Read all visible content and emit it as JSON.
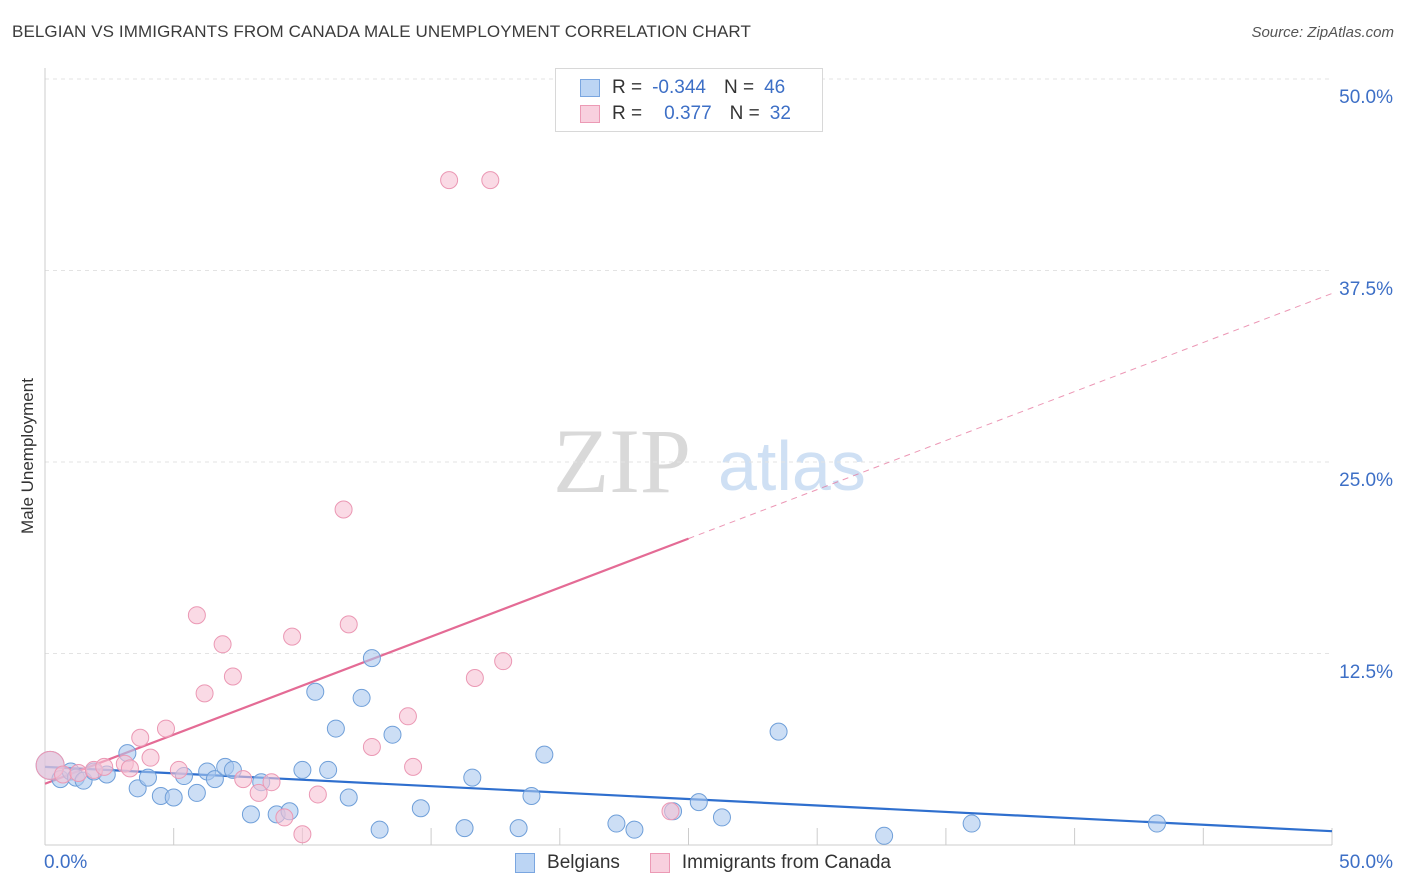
{
  "header": {
    "title": "BELGIAN VS IMMIGRANTS FROM CANADA MALE UNEMPLOYMENT CORRELATION CHART",
    "source": "Source: ZipAtlas.com"
  },
  "watermark": {
    "zip": "ZIP",
    "atlas": "atlas"
  },
  "legend_top": {
    "rows": [
      {
        "r_label": "R =",
        "r_value": "-0.344",
        "n_label": "N =",
        "n_value": "46",
        "color": "#a9c8f0",
        "border": "#7aa6e0"
      },
      {
        "r_label": "R =",
        "r_value": "0.377",
        "n_label": "N =",
        "n_value": "32",
        "color": "#f6c3d4",
        "border": "#ec9ab5"
      }
    ]
  },
  "colors": {
    "belgians_fill": "#aac8ee",
    "belgians_stroke": "#6f9fd9",
    "belgians_line": "#2f6fce",
    "canada_fill": "#f7c2d3",
    "canada_stroke": "#eb98b4",
    "canada_line": "#e46b95",
    "grid": "#e3e3e3",
    "axis_text": "#3d6fc6"
  },
  "chart_data": {
    "type": "scatter",
    "title": "BELGIAN VS IMMIGRANTS FROM CANADA MALE UNEMPLOYMENT CORRELATION CHART",
    "xlabel": "",
    "ylabel": "Male Unemployment",
    "xlim": [
      0,
      50
    ],
    "ylim": [
      0,
      50
    ],
    "x_tick_labels": [
      "0.0%",
      "50.0%"
    ],
    "y_tick_labels": [
      "12.5%",
      "25.0%",
      "37.5%",
      "50.0%"
    ],
    "y_ticks": [
      12.5,
      25.0,
      37.5,
      50.0
    ],
    "grid": true,
    "legend_position": "bottom-center",
    "series": [
      {
        "name": "Belgians",
        "points": [
          [
            0.2,
            5.2
          ],
          [
            0.6,
            4.3
          ],
          [
            1.0,
            4.8
          ],
          [
            1.2,
            4.4
          ],
          [
            1.5,
            4.2
          ],
          [
            1.9,
            4.8
          ],
          [
            2.4,
            4.6
          ],
          [
            3.2,
            6.0
          ],
          [
            3.6,
            3.7
          ],
          [
            4.0,
            4.4
          ],
          [
            4.5,
            3.2
          ],
          [
            5.0,
            3.1
          ],
          [
            5.4,
            4.5
          ],
          [
            5.9,
            3.4
          ],
          [
            6.3,
            4.8
          ],
          [
            6.6,
            4.3
          ],
          [
            7.0,
            5.1
          ],
          [
            7.3,
            4.9
          ],
          [
            8.0,
            2.0
          ],
          [
            8.4,
            4.1
          ],
          [
            9.0,
            2.0
          ],
          [
            9.5,
            2.2
          ],
          [
            10.0,
            4.9
          ],
          [
            10.5,
            10.0
          ],
          [
            11.0,
            4.9
          ],
          [
            11.3,
            7.6
          ],
          [
            11.8,
            3.1
          ],
          [
            12.3,
            9.6
          ],
          [
            12.7,
            12.2
          ],
          [
            13.0,
            1.0
          ],
          [
            13.5,
            7.2
          ],
          [
            14.6,
            2.4
          ],
          [
            16.3,
            1.1
          ],
          [
            16.6,
            4.4
          ],
          [
            18.4,
            1.1
          ],
          [
            18.9,
            3.2
          ],
          [
            19.4,
            5.9
          ],
          [
            22.2,
            1.4
          ],
          [
            22.9,
            1.0
          ],
          [
            24.4,
            2.2
          ],
          [
            25.4,
            2.8
          ],
          [
            26.3,
            1.8
          ],
          [
            28.5,
            7.4
          ],
          [
            32.6,
            0.6
          ],
          [
            36.0,
            1.4
          ],
          [
            43.2,
            1.4
          ]
        ]
      },
      {
        "name": "Immigrants from Canada",
        "points": [
          [
            0.2,
            5.2
          ],
          [
            0.7,
            4.6
          ],
          [
            1.3,
            4.7
          ],
          [
            1.9,
            4.9
          ],
          [
            2.3,
            5.1
          ],
          [
            3.1,
            5.3
          ],
          [
            3.3,
            5.0
          ],
          [
            3.7,
            7.0
          ],
          [
            4.1,
            5.7
          ],
          [
            4.7,
            7.6
          ],
          [
            5.2,
            4.9
          ],
          [
            5.9,
            15.0
          ],
          [
            6.2,
            9.9
          ],
          [
            6.9,
            13.1
          ],
          [
            7.3,
            11.0
          ],
          [
            7.7,
            4.3
          ],
          [
            8.3,
            3.4
          ],
          [
            8.8,
            4.1
          ],
          [
            9.3,
            1.8
          ],
          [
            9.6,
            13.6
          ],
          [
            10.0,
            0.7
          ],
          [
            10.6,
            3.3
          ],
          [
            11.6,
            21.9
          ],
          [
            11.8,
            14.4
          ],
          [
            12.7,
            6.4
          ],
          [
            14.1,
            8.4
          ],
          [
            14.3,
            5.1
          ],
          [
            15.7,
            43.4
          ],
          [
            16.7,
            10.9
          ],
          [
            17.3,
            43.4
          ],
          [
            17.8,
            12.0
          ],
          [
            24.3,
            2.2
          ]
        ]
      }
    ],
    "trend_lines": [
      {
        "series": "Belgians",
        "x": [
          0,
          50
        ],
        "y": [
          5.1,
          0.9
        ],
        "style": "solid"
      },
      {
        "series": "Immigrants from Canada",
        "x": [
          0,
          25
        ],
        "y": [
          4.0,
          20.0
        ],
        "style": "solid"
      },
      {
        "series": "Immigrants from Canada",
        "x": [
          25,
          50
        ],
        "y": [
          20.0,
          36.0
        ],
        "style": "dashed"
      }
    ]
  },
  "bottom_legend": [
    {
      "label": "Belgians"
    },
    {
      "label": "Immigrants from Canada"
    }
  ]
}
